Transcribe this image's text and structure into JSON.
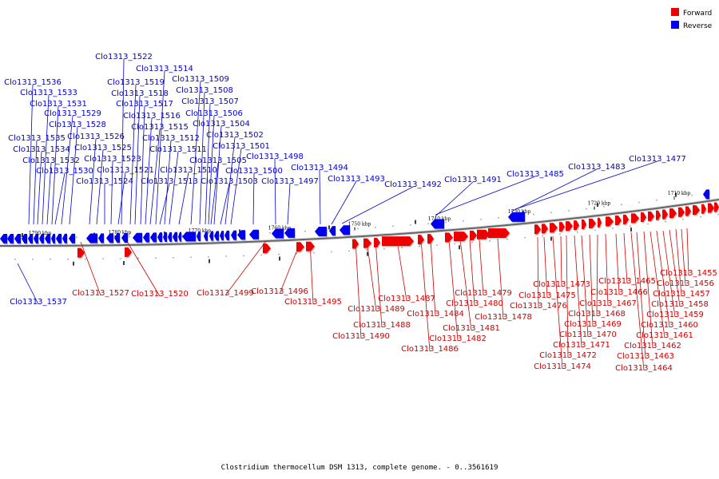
{
  "colors": {
    "forward": "#ee0000",
    "reverse": "#0000ee",
    "forward_line": "#cc0000",
    "reverse_line": "#0000cc"
  },
  "legend": {
    "forward_label": "Forward",
    "reverse_label": "Reverse"
  },
  "caption": "Clostridium thermocellum DSM 1313, complete genome. - 0..3561619",
  "scale_ticks": [
    "1790 kbp",
    "1780 kbp",
    "1770 kbp",
    "1760 kbp",
    "1750 kbp",
    "1740 kbp",
    "1730 kbp",
    "1720 kbp",
    "1710 kbp"
  ],
  "reverse_genes": [
    "Clo1313_1537",
    "Clo1313_1536",
    "Clo1313_1535",
    "Clo1313_1534",
    "Clo1313_1533",
    "Clo1313_1532",
    "Clo1313_1531",
    "Clo1313_1530",
    "Clo1313_1529",
    "Clo1313_1528",
    "Clo1313_1526",
    "Clo1313_1525",
    "Clo1313_1524",
    "Clo1313_1523",
    "Clo1313_1522",
    "Clo1313_1521",
    "Clo1313_1519",
    "Clo1313_1518",
    "Clo1313_1517",
    "Clo1313_1516",
    "Clo1313_1515",
    "Clo1313_1514",
    "Clo1313_1513",
    "Clo1313_1512",
    "Clo1313_1511",
    "Clo1313_1510",
    "Clo1313_1509",
    "Clo1313_1508",
    "Clo1313_1507",
    "Clo1313_1506",
    "Clo1313_1505",
    "Clo1313_1504",
    "Clo1313_1503",
    "Clo1313_1502",
    "Clo1313_1501",
    "Clo1313_1500",
    "Clo1313_1498",
    "Clo1313_1497",
    "Clo1313_1494",
    "Clo1313_1493",
    "Clo1313_1492",
    "Clo1313_1491",
    "Clo1313_1485",
    "Clo1313_1483",
    "Clo1313_1477"
  ],
  "forward_genes": [
    "Clo1313_1527",
    "Clo1313_1520",
    "Clo1313_1499",
    "Clo1313_1496",
    "Clo1313_1495",
    "Clo1313_1490",
    "Clo1313_1489",
    "Clo1313_1488",
    "Clo1313_1487",
    "Clo1313_1486",
    "Clo1313_1484",
    "Clo1313_1482",
    "Clo1313_1481",
    "Clo1313_1480",
    "Clo1313_1479",
    "Clo1313_1478",
    "Clo1313_1476",
    "Clo1313_1475",
    "Clo1313_1474",
    "Clo1313_1473",
    "Clo1313_1472",
    "Clo1313_1471",
    "Clo1313_1470",
    "Clo1313_1469",
    "Clo1313_1468",
    "Clo1313_1467",
    "Clo1313_1466",
    "Clo1313_1465",
    "Clo1313_1464",
    "Clo1313_1463",
    "Clo1313_1462",
    "Clo1313_1461",
    "Clo1313_1460",
    "Clo1313_1459",
    "Clo1313_1458",
    "Clo1313_1457",
    "Clo1313_1456",
    "Clo1313_1455"
  ]
}
